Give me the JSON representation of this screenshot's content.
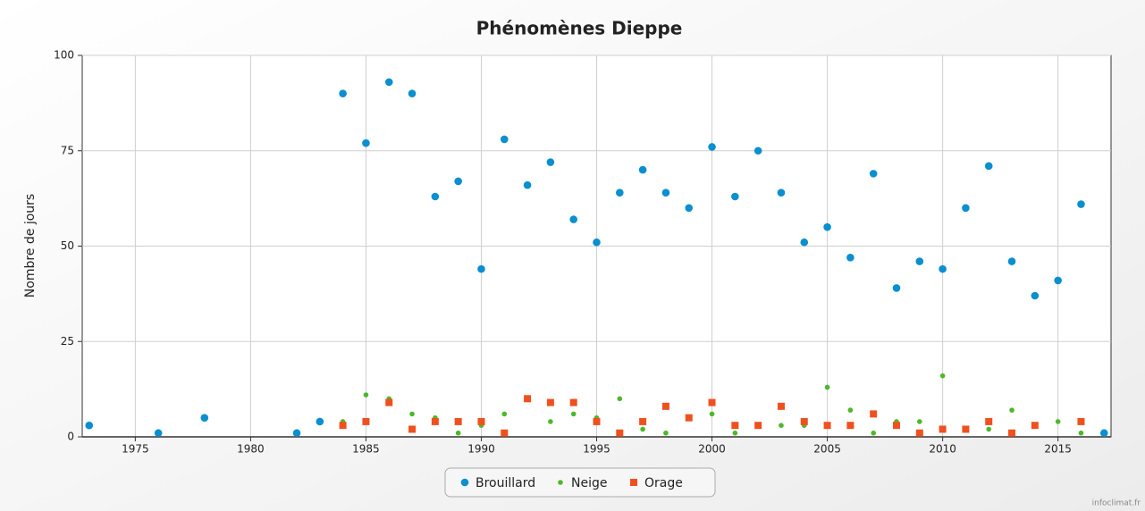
{
  "chart_data": {
    "type": "scatter",
    "title": "Phénomènes Dieppe",
    "y_label": "Nombre de jours",
    "credit": "infoclimat.fr",
    "xlim": [
      1972.7,
      2017.3
    ],
    "xticks": [
      1975,
      1980,
      1985,
      1990,
      1995,
      2000,
      2005,
      2010,
      2015
    ],
    "ylim": [
      0,
      100
    ],
    "yticks": [
      0,
      25,
      50,
      75,
      100
    ],
    "grid": true,
    "legend": "bottom",
    "series": [
      {
        "name": "Brouillard",
        "color": "#0a8fd0",
        "marker": "circle",
        "x": [
          1973,
          1976,
          1978,
          1982,
          1983,
          1984,
          1985,
          1986,
          1987,
          1988,
          1989,
          1990,
          1991,
          1992,
          1993,
          1994,
          1995,
          1996,
          1997,
          1998,
          1999,
          2000,
          2001,
          2002,
          2003,
          2004,
          2005,
          2006,
          2007,
          2008,
          2009,
          2010,
          2011,
          2012,
          2013,
          2014,
          2015,
          2016,
          2017
        ],
        "values": [
          3,
          1,
          5,
          1,
          4,
          90,
          77,
          93,
          90,
          63,
          67,
          44,
          78,
          66,
          72,
          57,
          51,
          64,
          70,
          64,
          60,
          76,
          63,
          75,
          64,
          51,
          55,
          47,
          69,
          39,
          46,
          44,
          60,
          71,
          46,
          37,
          41,
          61,
          1
        ]
      },
      {
        "name": "Neige",
        "color": "#4cb82a",
        "marker": "dot",
        "x": [
          1984,
          1985,
          1986,
          1987,
          1988,
          1989,
          1990,
          1991,
          1993,
          1994,
          1995,
          1996,
          1997,
          1998,
          2000,
          2001,
          2003,
          2004,
          2005,
          2006,
          2007,
          2008,
          2009,
          2010,
          2012,
          2013,
          2015,
          2016
        ],
        "values": [
          4,
          11,
          10,
          6,
          5,
          1,
          3,
          6,
          4,
          6,
          5,
          10,
          2,
          1,
          6,
          1,
          3,
          3,
          13,
          7,
          1,
          4,
          4,
          16,
          2,
          7,
          4,
          1
        ]
      },
      {
        "name": "Orage",
        "color": "#f0501e",
        "marker": "square",
        "x": [
          1984,
          1985,
          1986,
          1987,
          1988,
          1989,
          1990,
          1991,
          1992,
          1993,
          1994,
          1995,
          1996,
          1997,
          1998,
          1999,
          2000,
          2001,
          2002,
          2003,
          2004,
          2005,
          2006,
          2007,
          2008,
          2009,
          2010,
          2011,
          2012,
          2013,
          2014,
          2016
        ],
        "values": [
          3,
          4,
          9,
          2,
          4,
          4,
          4,
          1,
          10,
          9,
          9,
          4,
          1,
          4,
          8,
          5,
          9,
          3,
          3,
          8,
          4,
          3,
          3,
          6,
          3,
          1,
          2,
          2,
          4,
          1,
          3,
          4
        ]
      }
    ]
  }
}
